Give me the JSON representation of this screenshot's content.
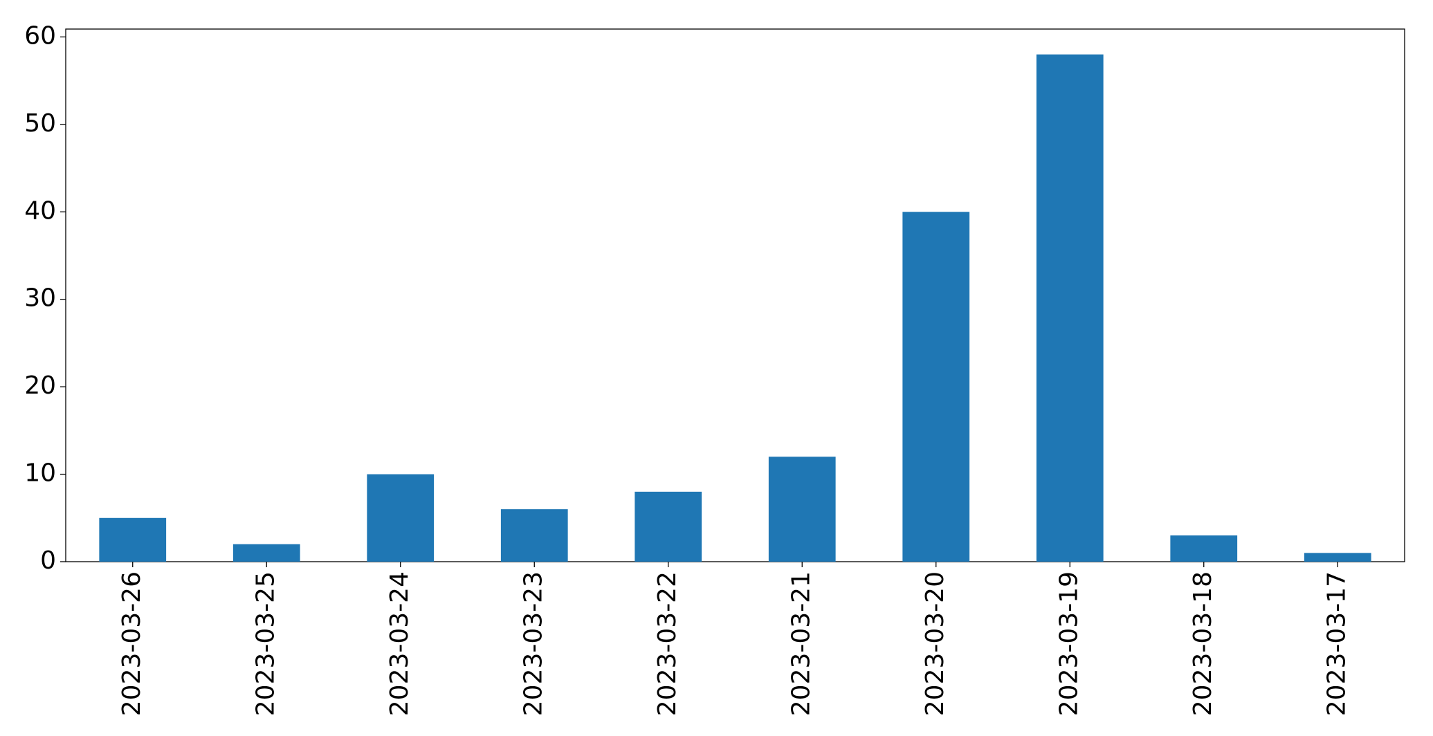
{
  "chart_data": {
    "type": "bar",
    "categories": [
      "2023-03-26",
      "2023-03-25",
      "2023-03-24",
      "2023-03-23",
      "2023-03-22",
      "2023-03-21",
      "2023-03-20",
      "2023-03-19",
      "2023-03-18",
      "2023-03-17"
    ],
    "values": [
      5,
      2,
      10,
      6,
      8,
      12,
      40,
      58,
      3,
      1
    ],
    "color": "#1f77b4",
    "ylim": [
      0,
      60.9
    ],
    "yticks": [
      0,
      10,
      20,
      30,
      40,
      50,
      60
    ],
    "grid": false
  }
}
